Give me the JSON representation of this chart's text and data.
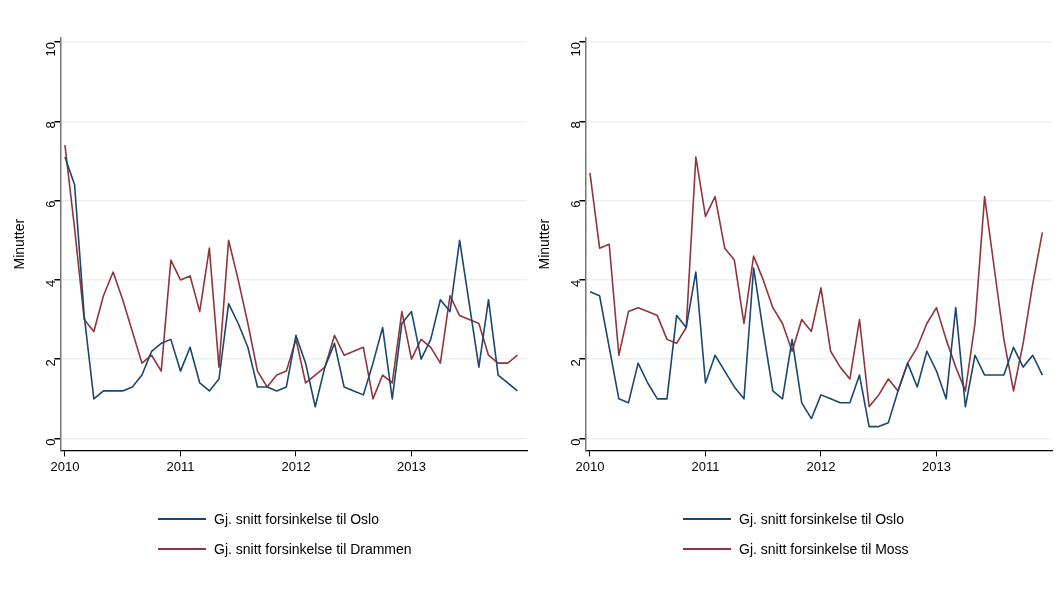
{
  "chart_data": [
    {
      "type": "line",
      "ylabel": "Minutter",
      "x": [
        "2010-01",
        "2010-02",
        "2010-03",
        "2010-04",
        "2010-05",
        "2010-06",
        "2010-07",
        "2010-08",
        "2010-09",
        "2010-10",
        "2010-11",
        "2010-12",
        "2011-01",
        "2011-02",
        "2011-03",
        "2011-04",
        "2011-05",
        "2011-06",
        "2011-07",
        "2011-08",
        "2011-09",
        "2011-10",
        "2011-11",
        "2011-12",
        "2012-01",
        "2012-02",
        "2012-03",
        "2012-04",
        "2012-05",
        "2012-06",
        "2012-07",
        "2012-08",
        "2012-09",
        "2012-10",
        "2012-11",
        "2012-12",
        "2013-01",
        "2013-02",
        "2013-03",
        "2013-04",
        "2013-05",
        "2013-06",
        "2013-07",
        "2013-08",
        "2013-09",
        "2013-10",
        "2013-11",
        "2013-12"
      ],
      "series": [
        {
          "name": "Gj. snitt forsinkelse til Oslo",
          "color": "#1a476f",
          "values": [
            7.1,
            6.4,
            3.1,
            1.0,
            1.2,
            1.2,
            1.2,
            1.3,
            1.6,
            2.2,
            2.4,
            2.5,
            1.7,
            2.3,
            1.4,
            1.2,
            1.5,
            3.4,
            2.9,
            2.3,
            1.3,
            1.3,
            1.2,
            1.3,
            2.6,
            1.9,
            0.8,
            1.8,
            2.4,
            1.3,
            1.2,
            1.1,
            1.9,
            2.8,
            1.0,
            2.9,
            3.2,
            2.0,
            2.5,
            3.5,
            3.2,
            5.0,
            3.4,
            1.8,
            3.5,
            1.6,
            1.4,
            1.2
          ]
        },
        {
          "name": "Gj. snitt forsinkelse til Drammen",
          "color": "#90353b",
          "values": [
            7.4,
            5.3,
            3.0,
            2.7,
            3.6,
            4.2,
            3.5,
            2.7,
            1.9,
            2.1,
            1.7,
            4.5,
            4.0,
            4.1,
            3.2,
            4.8,
            1.8,
            5.0,
            4.0,
            2.9,
            1.7,
            1.3,
            1.6,
            1.7,
            2.5,
            1.4,
            1.6,
            1.8,
            2.6,
            2.1,
            2.2,
            2.3,
            1.0,
            1.6,
            1.4,
            3.2,
            2.0,
            2.5,
            2.3,
            1.9,
            3.6,
            3.1,
            3.0,
            2.9,
            2.1,
            1.9,
            1.9,
            2.1
          ]
        }
      ],
      "xlim": [
        "2009-12-17",
        "2014-01-01"
      ],
      "xticks": [
        "2010",
        "2011",
        "2012",
        "2013"
      ],
      "ylim": [
        -0.3,
        10.1
      ],
      "yticks": [
        0,
        2,
        4,
        6,
        8,
        10
      ],
      "grid": "y",
      "legend": "bottom",
      "line_style": "solid",
      "marker": "none"
    },
    {
      "type": "line",
      "ylabel": "Minutter",
      "x": [
        "2010-01",
        "2010-02",
        "2010-03",
        "2010-04",
        "2010-05",
        "2010-06",
        "2010-07",
        "2010-08",
        "2010-09",
        "2010-10",
        "2010-11",
        "2010-12",
        "2011-01",
        "2011-02",
        "2011-03",
        "2011-04",
        "2011-05",
        "2011-06",
        "2011-07",
        "2011-08",
        "2011-09",
        "2011-10",
        "2011-11",
        "2011-12",
        "2012-01",
        "2012-02",
        "2012-03",
        "2012-04",
        "2012-05",
        "2012-06",
        "2012-07",
        "2012-08",
        "2012-09",
        "2012-10",
        "2012-11",
        "2012-12",
        "2013-01",
        "2013-02",
        "2013-03",
        "2013-04",
        "2013-05",
        "2013-06",
        "2013-07",
        "2013-08",
        "2013-09",
        "2013-10",
        "2013-11",
        "2013-12"
      ],
      "series": [
        {
          "name": "Gj. snitt forsinkelse til Oslo",
          "color": "#1a476f",
          "values": [
            3.7,
            3.6,
            2.3,
            1.0,
            0.9,
            1.9,
            1.4,
            1.0,
            1.0,
            3.1,
            2.8,
            4.2,
            1.4,
            2.1,
            1.7,
            1.3,
            1.0,
            4.3,
            2.7,
            1.2,
            1.0,
            2.5,
            0.9,
            0.5,
            1.1,
            1.0,
            0.9,
            0.9,
            1.6,
            0.3,
            0.3,
            0.4,
            1.2,
            1.9,
            1.3,
            2.2,
            1.7,
            1.0,
            3.3,
            0.8,
            2.1,
            1.6,
            1.6,
            1.6,
            2.3,
            1.8,
            2.1,
            1.6
          ]
        },
        {
          "name": "Gj. snitt forsinkelse til Moss",
          "color": "#90353b",
          "values": [
            6.7,
            4.8,
            4.9,
            2.1,
            3.2,
            3.3,
            3.2,
            3.1,
            2.5,
            2.4,
            2.8,
            7.1,
            5.6,
            6.1,
            4.8,
            4.5,
            2.9,
            4.6,
            4.0,
            3.3,
            2.9,
            2.2,
            3.0,
            2.7,
            3.8,
            2.2,
            1.8,
            1.5,
            3.0,
            0.8,
            1.1,
            1.5,
            1.2,
            1.9,
            2.3,
            2.9,
            3.3,
            2.5,
            1.8,
            1.2,
            2.9,
            6.1,
            4.3,
            2.5,
            1.2,
            2.4,
            3.9,
            5.2
          ]
        }
      ],
      "xlim": [
        "2009-12-17",
        "2014-01-01"
      ],
      "xticks": [
        "2010",
        "2011",
        "2012",
        "2013"
      ],
      "ylim": [
        -0.3,
        10.1
      ],
      "yticks": [
        0,
        2,
        4,
        6,
        8,
        10
      ],
      "grid": "y",
      "legend": "bottom",
      "line_style": "solid",
      "marker": "none"
    }
  ]
}
